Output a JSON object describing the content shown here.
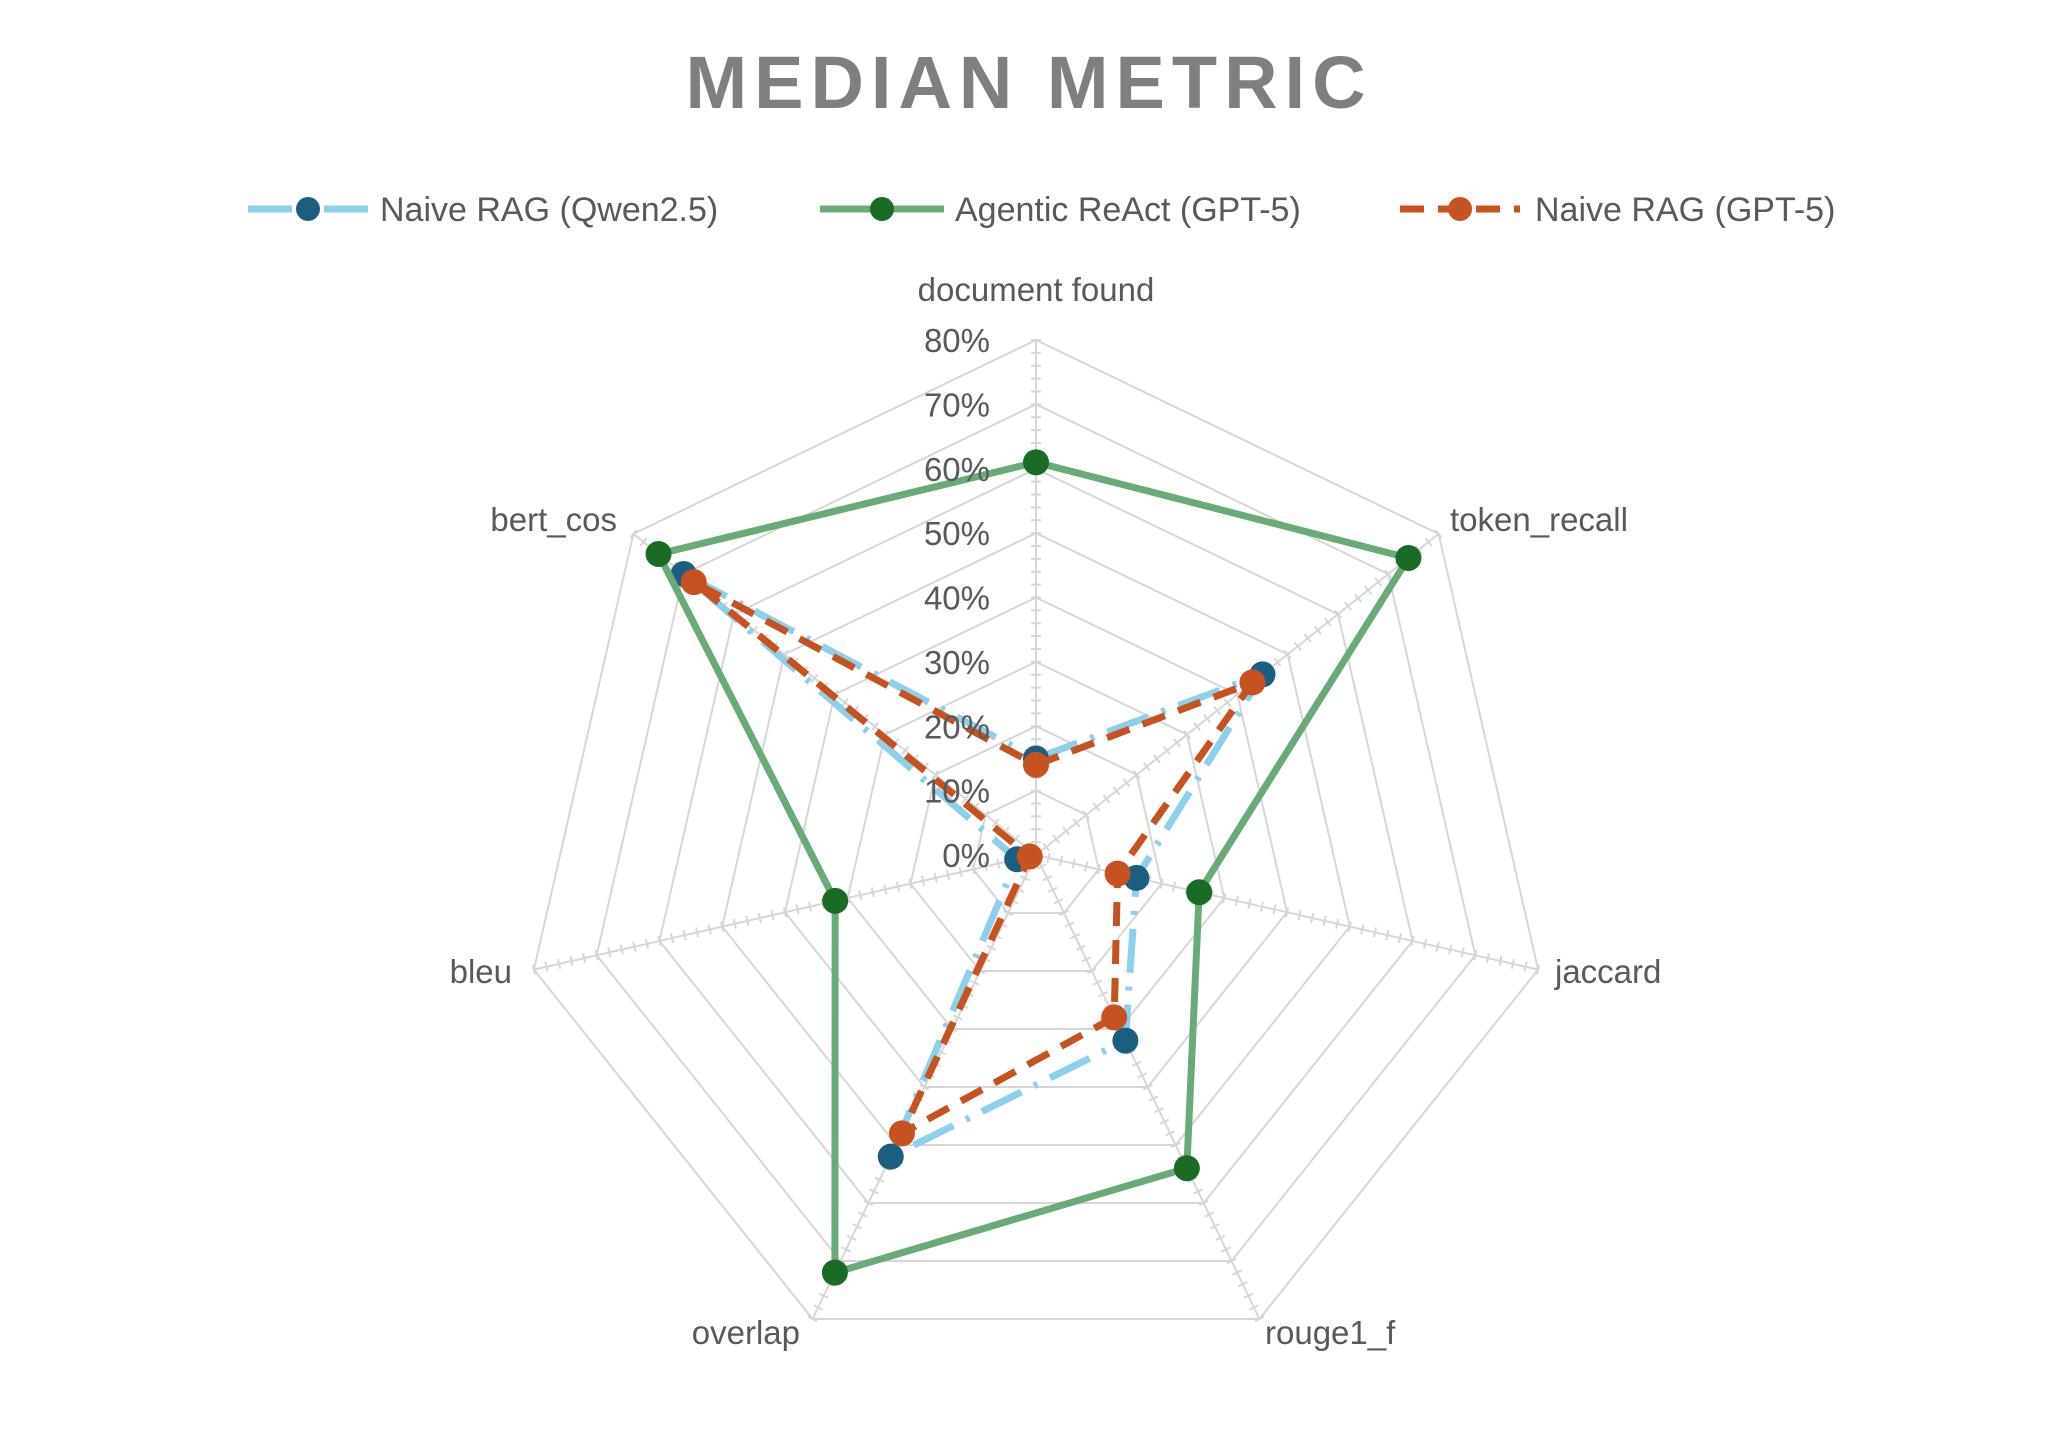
{
  "chart_data": {
    "type": "radar",
    "title": "MEDIAN METRIC",
    "categories": [
      "document found",
      "token_recall",
      "jaccard",
      "rouge1_f",
      "overlap",
      "bleu",
      "bert_cos"
    ],
    "r_range": [
      0,
      80
    ],
    "r_ticks": [
      "0%",
      "10%",
      "20%",
      "30%",
      "40%",
      "50%",
      "60%",
      "70%",
      "80%"
    ],
    "grid": true,
    "legend_position": "top",
    "series": [
      {
        "name": "Naive RAG (Qwen2.5)",
        "values": [
          15,
          45,
          16,
          32,
          52,
          3,
          70
        ],
        "color": "#8ecfe9",
        "marker_color": "#1b5e80",
        "line_style": "dash-dot"
      },
      {
        "name": "Agentic ReAct (GPT-5)",
        "values": [
          61,
          74,
          26,
          54,
          72,
          32,
          75
        ],
        "color": "#6aaa78",
        "marker_color": "#1a6b25",
        "line_style": "solid"
      },
      {
        "name": "Naive RAG (GPT-5)",
        "values": [
          14,
          43,
          13,
          28,
          48,
          1,
          68
        ],
        "color": "#c55220",
        "marker_color": "#c55220",
        "line_style": "dash"
      }
    ]
  }
}
